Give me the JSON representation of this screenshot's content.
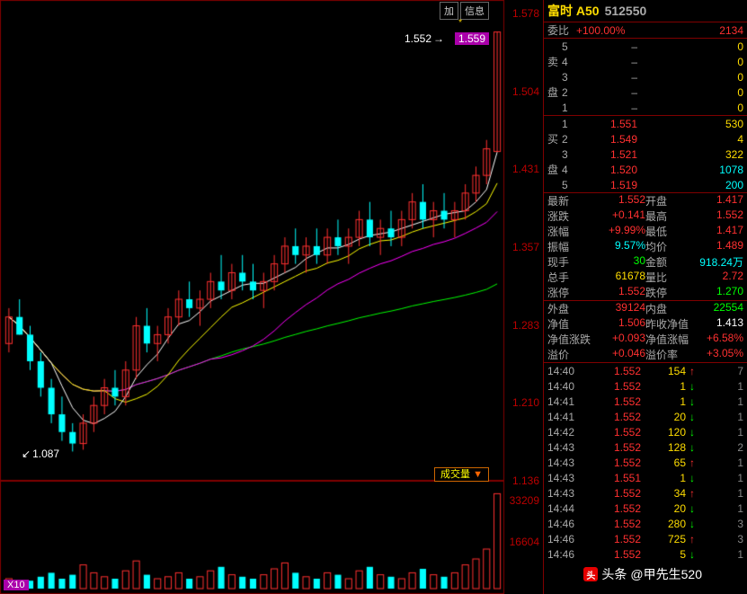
{
  "title": {
    "name": "富时 A50",
    "code": "512550"
  },
  "chart": {
    "buttons": {
      "add": "加",
      "info": "信息"
    },
    "priceBoxValue": "1.559",
    "topArrow": "1.552",
    "bottomArrow": "1.087",
    "volBtn": "成交量",
    "volDrop": "▼",
    "x10": "X10",
    "yAxisPrices": [
      "1.578",
      "1.504",
      "1.431",
      "1.357",
      "1.283",
      "1.210",
      "1.136"
    ],
    "volAxis": [
      "33209",
      "16604"
    ],
    "starGlyph": "*",
    "candles": {
      "comment": "approximate candlestick data for visual reproduction",
      "priceMin": 1.05,
      "priceMax": 1.578,
      "series": [
        {
          "o": 1.2,
          "h": 1.24,
          "l": 1.19,
          "c": 1.23,
          "up": true
        },
        {
          "o": 1.23,
          "h": 1.25,
          "l": 1.21,
          "c": 1.21,
          "up": false
        },
        {
          "o": 1.21,
          "h": 1.22,
          "l": 1.17,
          "c": 1.18,
          "up": false
        },
        {
          "o": 1.18,
          "h": 1.19,
          "l": 1.14,
          "c": 1.15,
          "up": false
        },
        {
          "o": 1.15,
          "h": 1.16,
          "l": 1.11,
          "c": 1.12,
          "up": false
        },
        {
          "o": 1.12,
          "h": 1.14,
          "l": 1.09,
          "c": 1.1,
          "up": false
        },
        {
          "o": 1.1,
          "h": 1.11,
          "l": 1.078,
          "c": 1.087,
          "up": false
        },
        {
          "o": 1.087,
          "h": 1.12,
          "l": 1.08,
          "c": 1.11,
          "up": true
        },
        {
          "o": 1.11,
          "h": 1.14,
          "l": 1.1,
          "c": 1.13,
          "up": true
        },
        {
          "o": 1.13,
          "h": 1.16,
          "l": 1.12,
          "c": 1.15,
          "up": true
        },
        {
          "o": 1.15,
          "h": 1.17,
          "l": 1.13,
          "c": 1.14,
          "up": false
        },
        {
          "o": 1.14,
          "h": 1.18,
          "l": 1.13,
          "c": 1.17,
          "up": true
        },
        {
          "o": 1.17,
          "h": 1.23,
          "l": 1.16,
          "c": 1.22,
          "up": true
        },
        {
          "o": 1.22,
          "h": 1.24,
          "l": 1.19,
          "c": 1.2,
          "up": false
        },
        {
          "o": 1.2,
          "h": 1.22,
          "l": 1.18,
          "c": 1.21,
          "up": true
        },
        {
          "o": 1.21,
          "h": 1.24,
          "l": 1.2,
          "c": 1.23,
          "up": true
        },
        {
          "o": 1.23,
          "h": 1.26,
          "l": 1.22,
          "c": 1.25,
          "up": true
        },
        {
          "o": 1.25,
          "h": 1.27,
          "l": 1.23,
          "c": 1.24,
          "up": false
        },
        {
          "o": 1.24,
          "h": 1.26,
          "l": 1.22,
          "c": 1.25,
          "up": true
        },
        {
          "o": 1.25,
          "h": 1.28,
          "l": 1.24,
          "c": 1.27,
          "up": true
        },
        {
          "o": 1.27,
          "h": 1.3,
          "l": 1.25,
          "c": 1.26,
          "up": false
        },
        {
          "o": 1.26,
          "h": 1.29,
          "l": 1.25,
          "c": 1.28,
          "up": true
        },
        {
          "o": 1.28,
          "h": 1.3,
          "l": 1.26,
          "c": 1.27,
          "up": false
        },
        {
          "o": 1.27,
          "h": 1.29,
          "l": 1.25,
          "c": 1.26,
          "up": false
        },
        {
          "o": 1.26,
          "h": 1.28,
          "l": 1.24,
          "c": 1.27,
          "up": true
        },
        {
          "o": 1.27,
          "h": 1.3,
          "l": 1.26,
          "c": 1.29,
          "up": true
        },
        {
          "o": 1.29,
          "h": 1.32,
          "l": 1.28,
          "c": 1.31,
          "up": true
        },
        {
          "o": 1.31,
          "h": 1.33,
          "l": 1.29,
          "c": 1.3,
          "up": false
        },
        {
          "o": 1.3,
          "h": 1.32,
          "l": 1.28,
          "c": 1.31,
          "up": true
        },
        {
          "o": 1.31,
          "h": 1.33,
          "l": 1.29,
          "c": 1.3,
          "up": false
        },
        {
          "o": 1.3,
          "h": 1.33,
          "l": 1.29,
          "c": 1.32,
          "up": true
        },
        {
          "o": 1.32,
          "h": 1.34,
          "l": 1.3,
          "c": 1.31,
          "up": false
        },
        {
          "o": 1.31,
          "h": 1.33,
          "l": 1.29,
          "c": 1.32,
          "up": true
        },
        {
          "o": 1.32,
          "h": 1.35,
          "l": 1.31,
          "c": 1.34,
          "up": true
        },
        {
          "o": 1.34,
          "h": 1.36,
          "l": 1.31,
          "c": 1.32,
          "up": false
        },
        {
          "o": 1.32,
          "h": 1.34,
          "l": 1.3,
          "c": 1.33,
          "up": true
        },
        {
          "o": 1.33,
          "h": 1.35,
          "l": 1.31,
          "c": 1.32,
          "up": false
        },
        {
          "o": 1.32,
          "h": 1.35,
          "l": 1.31,
          "c": 1.34,
          "up": true
        },
        {
          "o": 1.34,
          "h": 1.37,
          "l": 1.33,
          "c": 1.36,
          "up": true
        },
        {
          "o": 1.36,
          "h": 1.38,
          "l": 1.33,
          "c": 1.34,
          "up": false
        },
        {
          "o": 1.34,
          "h": 1.36,
          "l": 1.32,
          "c": 1.35,
          "up": true
        },
        {
          "o": 1.35,
          "h": 1.37,
          "l": 1.33,
          "c": 1.34,
          "up": false
        },
        {
          "o": 1.34,
          "h": 1.36,
          "l": 1.32,
          "c": 1.35,
          "up": true
        },
        {
          "o": 1.35,
          "h": 1.38,
          "l": 1.34,
          "c": 1.37,
          "up": true
        },
        {
          "o": 1.37,
          "h": 1.4,
          "l": 1.36,
          "c": 1.39,
          "up": true
        },
        {
          "o": 1.39,
          "h": 1.43,
          "l": 1.38,
          "c": 1.42,
          "up": true
        },
        {
          "o": 1.417,
          "h": 1.552,
          "l": 1.417,
          "c": 1.552,
          "up": true
        }
      ],
      "maColors": {
        "ma5": "#ffffff",
        "ma10": "#ffff00",
        "ma20": "#ff00ff",
        "ma60": "#00ff00"
      }
    },
    "volumes": [
      5,
      3,
      4,
      6,
      8,
      5,
      7,
      12,
      8,
      6,
      5,
      9,
      14,
      7,
      5,
      6,
      8,
      5,
      6,
      9,
      11,
      7,
      6,
      5,
      7,
      10,
      13,
      8,
      6,
      5,
      8,
      7,
      5,
      9,
      11,
      7,
      6,
      5,
      8,
      10,
      7,
      6,
      8,
      12,
      15,
      20,
      48
    ],
    "volMax": 50,
    "chartColors": {
      "bg": "#000000",
      "border": "#800000",
      "upCandle": "#ff3030",
      "downCandle": "#00ffff",
      "upFill": "#000000",
      "downFill": "#00ffff",
      "axisText": "#b00000"
    }
  },
  "weibi": {
    "label": "委比",
    "pct": "+100.00%",
    "val": "2134"
  },
  "sellOrders": {
    "label1": "卖",
    "label2": "盘",
    "rows": [
      {
        "idx": "5",
        "p": "–",
        "v": "0"
      },
      {
        "idx": "4",
        "p": "–",
        "v": "0"
      },
      {
        "idx": "3",
        "p": "–",
        "v": "0"
      },
      {
        "idx": "2",
        "p": "–",
        "v": "0"
      },
      {
        "idx": "1",
        "p": "–",
        "v": "0"
      }
    ]
  },
  "buyOrders": {
    "label1": "买",
    "label2": "盘",
    "rows": [
      {
        "idx": "1",
        "p": "1.551",
        "v": "530",
        "c": "yellow"
      },
      {
        "idx": "2",
        "p": "1.549",
        "v": "4",
        "c": "yellow"
      },
      {
        "idx": "3",
        "p": "1.521",
        "v": "322",
        "c": "yellow"
      },
      {
        "idx": "4",
        "p": "1.520",
        "v": "1078",
        "c": "cyan"
      },
      {
        "idx": "5",
        "p": "1.519",
        "v": "200",
        "c": "cyan"
      }
    ]
  },
  "info": [
    [
      {
        "l": "最新",
        "v": "1.552",
        "c": "red"
      },
      {
        "l": "开盘",
        "v": "1.417",
        "c": "red"
      }
    ],
    [
      {
        "l": "涨跌",
        "v": "+0.141",
        "c": "red"
      },
      {
        "l": "最高",
        "v": "1.552",
        "c": "red"
      }
    ],
    [
      {
        "l": "涨幅",
        "v": "+9.99%",
        "c": "red"
      },
      {
        "l": "最低",
        "v": "1.417",
        "c": "red"
      }
    ],
    [
      {
        "l": "振幅",
        "v": "9.57%",
        "c": "cyan"
      },
      {
        "l": "均价",
        "v": "1.489",
        "c": "red"
      }
    ],
    [
      {
        "l": "现手",
        "v": "30",
        "c": "green"
      },
      {
        "l": "金额",
        "v": "918.24万",
        "c": "cyan"
      }
    ],
    [
      {
        "l": "总手",
        "v": "61678",
        "c": "yellow"
      },
      {
        "l": "量比",
        "v": "2.72",
        "c": "red"
      }
    ],
    [
      {
        "l": "涨停",
        "v": "1.552",
        "c": "red"
      },
      {
        "l": "跌停",
        "v": "1.270",
        "c": "green"
      }
    ]
  ],
  "info2": [
    [
      {
        "l": "外盘",
        "v": "39124",
        "c": "red"
      },
      {
        "l": "内盘",
        "v": "22554",
        "c": "green"
      }
    ],
    [
      {
        "l": "净值",
        "v": "1.506",
        "c": "red"
      },
      {
        "l": "昨收净值",
        "v": "1.413",
        "c": "white",
        "lw": "56px"
      }
    ],
    [
      {
        "l": "净值涨跌",
        "v": "+0.093",
        "c": "red",
        "lw": "56px"
      },
      {
        "l": "净值涨幅",
        "v": "+6.58%",
        "c": "red",
        "lw": "56px"
      }
    ],
    [
      {
        "l": "溢价",
        "v": "+0.046",
        "c": "red"
      },
      {
        "l": "溢价率",
        "v": "+3.05%",
        "c": "red",
        "lw": "44px"
      }
    ]
  ],
  "ticks": [
    {
      "t": "14:40",
      "p": "1.552",
      "v": "154",
      "d": "up",
      "e": "7"
    },
    {
      "t": "14:40",
      "p": "1.552",
      "v": "1",
      "d": "dn",
      "e": "1"
    },
    {
      "t": "14:41",
      "p": "1.552",
      "v": "1",
      "d": "dn",
      "e": "1"
    },
    {
      "t": "14:41",
      "p": "1.552",
      "v": "20",
      "d": "dn",
      "e": "1"
    },
    {
      "t": "14:42",
      "p": "1.552",
      "v": "120",
      "d": "dn",
      "e": "1"
    },
    {
      "t": "14:43",
      "p": "1.552",
      "v": "128",
      "d": "dn",
      "e": "2"
    },
    {
      "t": "14:43",
      "p": "1.552",
      "v": "65",
      "d": "up",
      "e": "1"
    },
    {
      "t": "14:43",
      "p": "1.551",
      "v": "1",
      "d": "dn",
      "e": "1"
    },
    {
      "t": "14:43",
      "p": "1.552",
      "v": "34",
      "d": "up",
      "e": "1"
    },
    {
      "t": "14:44",
      "p": "1.552",
      "v": "20",
      "d": "dn",
      "e": "1"
    },
    {
      "t": "14:46",
      "p": "1.552",
      "v": "280",
      "d": "dn",
      "e": "3"
    },
    {
      "t": "14:46",
      "p": "1.552",
      "v": "725",
      "d": "up",
      "e": "3"
    },
    {
      "t": "14:46",
      "p": "1.552",
      "v": "5",
      "d": "dn",
      "e": "1"
    }
  ],
  "watermark": {
    "prefix": "头条",
    "user": "@甲先生520",
    "iconText": "头"
  }
}
